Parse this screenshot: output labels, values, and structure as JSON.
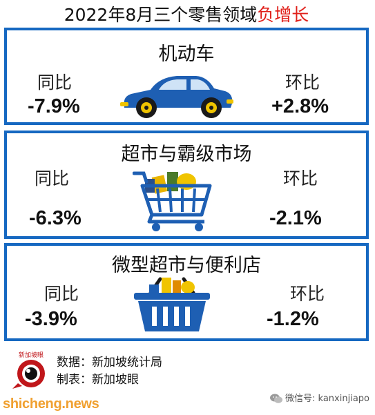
{
  "header": {
    "title_main": "2022年8月三个零售领域",
    "title_highlight": "负增长",
    "highlight_color": "#e0201a"
  },
  "chart_data": {
    "type": "table",
    "unit": "%",
    "columns": [
      "同比",
      "环比"
    ],
    "rows": [
      {
        "category": "机动车",
        "yoy": -7.9,
        "mom": 2.8,
        "yoy_text": "-7.9%",
        "mom_text": "+2.8%",
        "icon": "car-icon"
      },
      {
        "category": "超市与霸级市场",
        "yoy": -6.3,
        "mom": -2.1,
        "yoy_text": "-6.3%",
        "mom_text": "-2.1%",
        "icon": "shopping-cart-icon"
      },
      {
        "category": "微型超市与便利店",
        "yoy": -3.9,
        "mom": -1.2,
        "yoy_text": "-3.9%",
        "mom_text": "-1.2%",
        "icon": "shopping-basket-icon"
      }
    ],
    "border_color": "#1668c1"
  },
  "footer": {
    "source": "数据：新加坡统计局",
    "maker": "制表：新加坡眼",
    "logo_text": "新加坡眼",
    "site": "shicheng.news",
    "wechat": "微信号: kanxinjiapo"
  }
}
